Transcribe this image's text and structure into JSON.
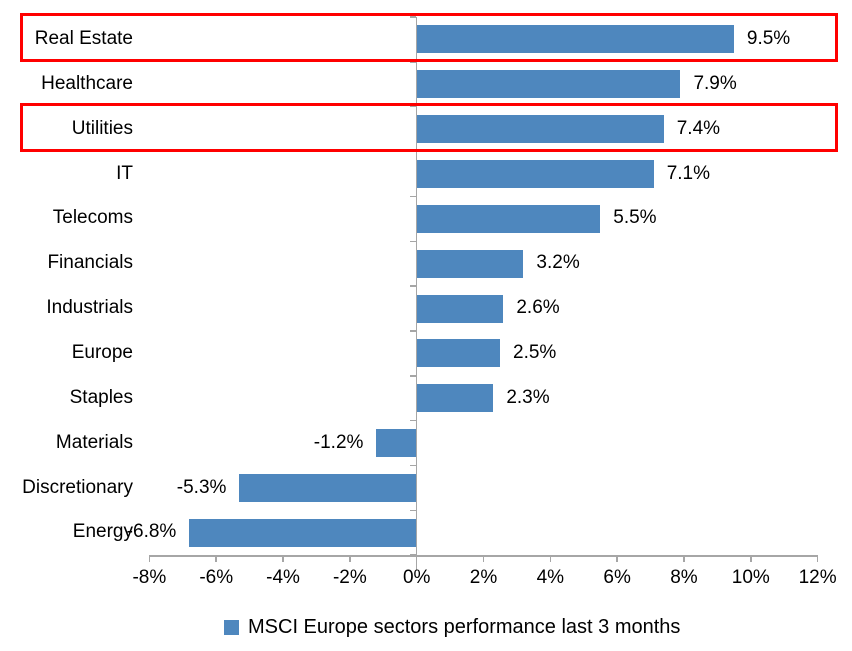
{
  "chart_data": {
    "type": "bar",
    "orientation": "horizontal",
    "title": "",
    "categories": [
      "Real Estate",
      "Healthcare",
      "Utilities",
      "IT",
      "Telecoms",
      "Financials",
      "Industrials",
      "Europe",
      "Staples",
      "Materials",
      "Discretionary",
      "Energy"
    ],
    "values": [
      9.5,
      7.9,
      7.4,
      7.1,
      5.5,
      3.2,
      2.6,
      2.5,
      2.3,
      -1.2,
      -5.3,
      -6.8
    ],
    "data_labels": [
      "9.5%",
      "7.9%",
      "7.4%",
      "7.1%",
      "5.5%",
      "3.2%",
      "2.6%",
      "2.5%",
      "2.3%",
      "-1.2%",
      "-5.3%",
      "-6.8%"
    ],
    "legend": "MSCI Europe sectors performance last 3 months",
    "legend_position": "bottom",
    "grid": false,
    "x_axis": {
      "min": -8,
      "max": 12,
      "tick_step": 2,
      "tick_labels": [
        "-8%",
        "-6%",
        "-4%",
        "-2%",
        "0%",
        "2%",
        "4%",
        "6%",
        "8%",
        "10%",
        "12%"
      ]
    },
    "highlighted_categories": [
      "Real Estate",
      "Utilities"
    ],
    "colors": {
      "bar": "#4E87BE",
      "axis": "#A6A6A6",
      "highlight": "#FF0000",
      "text": "#000000",
      "background": "#FFFFFF"
    }
  }
}
